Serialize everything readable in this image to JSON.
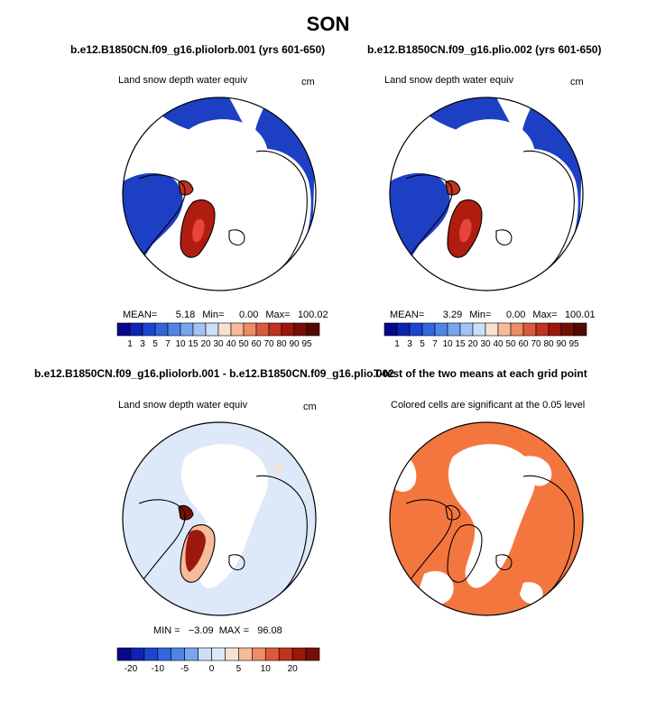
{
  "figure_title": "SON",
  "panels": [
    {
      "title": "b.e12.B1850CN.f09_g16.pliolorb.001 (yrs 601-650)",
      "left_label": "Land snow depth water equiv",
      "right_label": "cm",
      "stats": {
        "mean_label": "MEAN=",
        "mean": "5.18",
        "min_label": "Min=",
        "min": "0.00",
        "max_label": "Max=",
        "max": "100.02"
      }
    },
    {
      "title": "b.e12.B1850CN.f09_g16.plio.002 (yrs 601-650)",
      "left_label": "Land snow depth water equiv",
      "right_label": "cm",
      "stats": {
        "mean_label": "MEAN=",
        "mean": "3.29",
        "min_label": "Min=",
        "min": "0.00",
        "max_label": "Max=",
        "max": "100.01"
      }
    },
    {
      "title": "b.e12.B1850CN.f09_g16.pliolorb.001 - b.e12.B1850CN.f09_g16.plio.002",
      "left_label": "Land snow depth water equiv",
      "right_label": "cm",
      "stats_line": "MIN =   −3.09  MAX =   96.08"
    },
    {
      "title": "T-test of the two means at each grid point",
      "left_label": "Colored cells are significant at the 0.05 level"
    }
  ],
  "chart_data": [
    {
      "type": "heatmap",
      "projection": "north-polar-stereographic",
      "title": "b.e12.B1850CN.f09_g16.pliolorb.001 (yrs 601-650)",
      "variable": "Land snow depth water equiv",
      "units": "cm",
      "mean": 5.18,
      "min": 0.0,
      "max": 100.02,
      "colorbar": {
        "levels": [
          "1",
          "3",
          "5",
          "7",
          "10",
          "15",
          "20",
          "30",
          "40",
          "50",
          "60",
          "70",
          "80",
          "90",
          "95"
        ],
        "colors": [
          "#08088c",
          "#0d23b4",
          "#1c45cf",
          "#3366dd",
          "#4f86e6",
          "#77a5ee",
          "#a3c3f5",
          "#cddff8",
          "#f7e2d2",
          "#f6bb9a",
          "#ee8c64",
          "#dc5a3c",
          "#c1331e",
          "#9c170c",
          "#761006",
          "#540903"
        ]
      }
    },
    {
      "type": "heatmap",
      "projection": "north-polar-stereographic",
      "title": "b.e12.B1850CN.f09_g16.plio.002 (yrs 601-650)",
      "variable": "Land snow depth water equiv",
      "units": "cm",
      "mean": 3.29,
      "min": 0.0,
      "max": 100.01,
      "colorbar": {
        "levels": [
          "1",
          "3",
          "5",
          "7",
          "10",
          "15",
          "20",
          "30",
          "40",
          "50",
          "60",
          "70",
          "80",
          "90",
          "95"
        ],
        "colors": [
          "#08088c",
          "#0d23b4",
          "#1c45cf",
          "#3366dd",
          "#4f86e6",
          "#77a5ee",
          "#a3c3f5",
          "#cddff8",
          "#f7e2d2",
          "#f6bb9a",
          "#ee8c64",
          "#dc5a3c",
          "#c1331e",
          "#9c170c",
          "#761006",
          "#540903"
        ]
      }
    },
    {
      "type": "heatmap",
      "projection": "north-polar-stereographic",
      "title": "b.e12.B1850CN.f09_g16.pliolorb.001 - b.e12.B1850CN.f09_g16.plio.002",
      "variable": "Land snow depth water equiv",
      "units": "cm",
      "min": -3.09,
      "max": 96.08,
      "colorbar": {
        "levels": [
          "-20",
          "-10",
          "-5",
          "0",
          "5",
          "10",
          "20"
        ],
        "labeled_positions": [
          1,
          3,
          5,
          7,
          9,
          11,
          13
        ],
        "colors": [
          "#08088c",
          "#0d23b4",
          "#1c45cf",
          "#3366dd",
          "#4f86e6",
          "#77a5ee",
          "#cddff8",
          "#dde9f9",
          "#f7e2d2",
          "#f6bb9a",
          "#ee8c64",
          "#dc5a3c",
          "#c1331e",
          "#9c170c",
          "#761006"
        ]
      }
    },
    {
      "type": "heatmap",
      "projection": "north-polar-stereographic",
      "title": "T-test of the two means at each grid point",
      "note": "Colored cells are significant at the 0.05 level",
      "significant_color": "#f4763f"
    }
  ]
}
